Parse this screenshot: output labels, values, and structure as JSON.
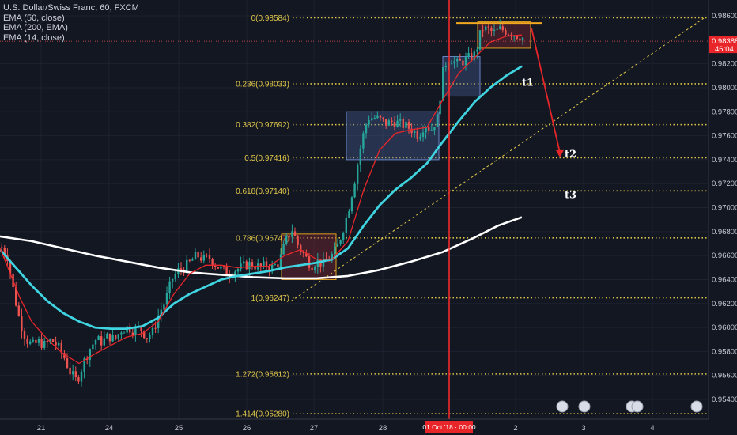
{
  "legend": {
    "symbol": "U.S. Dollar/Swiss Franc, 60, FXCM",
    "ema1": "EMA (50, close)",
    "ema2": "EMA (200, EMA)",
    "ema3": "EMA (14, close)"
  },
  "colors": {
    "background": "#131722",
    "fib": "#e0c74a",
    "ema50": "#3fd4e0",
    "ema200": "#ffffff",
    "ema14": "#e8262a",
    "bull": "#26a69a",
    "bear": "#ef5350",
    "vline": "#ff2a2a",
    "arrow": "#e8262a"
  },
  "price_tag": {
    "price": "0.98388",
    "countdown": "46:04"
  },
  "vline_label": "01 Oct '18 · 00:00",
  "targets": [
    "t1",
    "t2",
    "t3"
  ],
  "chart_data": {
    "type": "candlestick",
    "y_range": [
      0.9528,
      0.9866
    ],
    "y_ticks": [
      "0.98600",
      "0.98400",
      "0.98200",
      "0.98000",
      "0.97800",
      "0.97600",
      "0.97400",
      "0.97200",
      "0.97000",
      "0.96800",
      "0.96600",
      "0.96400",
      "0.96200",
      "0.96000",
      "0.95800",
      "0.95600",
      "0.95400"
    ],
    "x_ticks": [
      "21",
      "24",
      "25",
      "26",
      "27",
      "28",
      "2",
      "3",
      "4"
    ],
    "fib_levels": [
      {
        "label": "0(0.98584)",
        "value": 0.98584
      },
      {
        "label": "0.236(0.98033)",
        "value": 0.98033
      },
      {
        "label": "0.382(0.97692)",
        "value": 0.97692
      },
      {
        "label": "0.5(0.97416)",
        "value": 0.97416
      },
      {
        "label": "0.618(0.97140)",
        "value": 0.9714
      },
      {
        "label": "0.786(0.96747)",
        "value": 0.96747
      },
      {
        "label": "1(0.96247)",
        "value": 0.96247
      },
      {
        "label": "1.272(0.95612)",
        "value": 0.95612
      },
      {
        "label": "1.414(0.95280)",
        "value": 0.9528
      }
    ],
    "price_path": [
      [
        0,
        0.9667
      ],
      [
        8,
        0.966
      ],
      [
        16,
        0.963
      ],
      [
        24,
        0.9605
      ],
      [
        32,
        0.959
      ],
      [
        40,
        0.9585
      ],
      [
        48,
        0.9588
      ],
      [
        56,
        0.9585
      ],
      [
        64,
        0.959
      ],
      [
        72,
        0.9584
      ],
      [
        80,
        0.9575
      ],
      [
        88,
        0.9562
      ],
      [
        96,
        0.9555
      ],
      [
        104,
        0.957
      ],
      [
        112,
        0.9582
      ],
      [
        120,
        0.959
      ],
      [
        128,
        0.9588
      ],
      [
        136,
        0.9593
      ],
      [
        144,
        0.959
      ],
      [
        152,
        0.9598
      ],
      [
        160,
        0.96
      ],
      [
        168,
        0.9598
      ],
      [
        176,
        0.96
      ],
      [
        184,
        0.9592
      ],
      [
        192,
        0.9596
      ],
      [
        200,
        0.9612
      ],
      [
        208,
        0.9622
      ],
      [
        216,
        0.964
      ],
      [
        224,
        0.9647
      ],
      [
        232,
        0.965
      ],
      [
        240,
        0.9655
      ],
      [
        248,
        0.966
      ],
      [
        256,
        0.9657
      ],
      [
        264,
        0.9658
      ],
      [
        272,
        0.9652
      ],
      [
        280,
        0.9648
      ],
      [
        288,
        0.9645
      ],
      [
        296,
        0.9648
      ],
      [
        304,
        0.965
      ],
      [
        312,
        0.9653
      ],
      [
        320,
        0.9652
      ],
      [
        328,
        0.965
      ],
      [
        336,
        0.9652
      ],
      [
        344,
        0.965
      ],
      [
        352,
        0.9655
      ],
      [
        360,
        0.9672
      ],
      [
        368,
        0.9682
      ],
      [
        376,
        0.9668
      ],
      [
        384,
        0.966
      ],
      [
        392,
        0.9652
      ],
      [
        400,
        0.9655
      ],
      [
        408,
        0.9653
      ],
      [
        416,
        0.9658
      ],
      [
        424,
        0.9665
      ],
      [
        432,
        0.968
      ],
      [
        440,
        0.97
      ],
      [
        448,
        0.9725
      ],
      [
        456,
        0.9755
      ],
      [
        464,
        0.9775
      ],
      [
        472,
        0.9775
      ],
      [
        480,
        0.9773
      ],
      [
        488,
        0.977
      ],
      [
        496,
        0.9772
      ],
      [
        504,
        0.977
      ],
      [
        512,
        0.9768
      ],
      [
        520,
        0.9765
      ],
      [
        528,
        0.976
      ],
      [
        536,
        0.977
      ],
      [
        544,
        0.9765
      ],
      [
        552,
        0.9775
      ],
      [
        560,
        0.9818
      ],
      [
        568,
        0.9825
      ],
      [
        576,
        0.982
      ],
      [
        584,
        0.9822
      ],
      [
        592,
        0.9825
      ],
      [
        600,
        0.9828
      ],
      [
        608,
        0.985
      ],
      [
        616,
        0.9848
      ],
      [
        624,
        0.9846
      ],
      [
        632,
        0.9849
      ],
      [
        640,
        0.9847
      ],
      [
        648,
        0.9845
      ],
      [
        656,
        0.9843
      ],
      [
        662,
        0.9841
      ]
    ],
    "ema50": [
      [
        0,
        0.9665
      ],
      [
        20,
        0.965
      ],
      [
        40,
        0.9635
      ],
      [
        60,
        0.9622
      ],
      [
        80,
        0.9612
      ],
      [
        100,
        0.9605
      ],
      [
        120,
        0.96
      ],
      [
        140,
        0.9599
      ],
      [
        160,
        0.9599
      ],
      [
        180,
        0.9601
      ],
      [
        200,
        0.9608
      ],
      [
        220,
        0.962
      ],
      [
        240,
        0.9628
      ],
      [
        260,
        0.9634
      ],
      [
        280,
        0.964
      ],
      [
        300,
        0.9643
      ],
      [
        320,
        0.9645
      ],
      [
        340,
        0.9647
      ],
      [
        360,
        0.965
      ],
      [
        380,
        0.9652
      ],
      [
        400,
        0.9654
      ],
      [
        420,
        0.9657
      ],
      [
        440,
        0.9666
      ],
      [
        460,
        0.9685
      ],
      [
        480,
        0.9702
      ],
      [
        500,
        0.9715
      ],
      [
        520,
        0.9725
      ],
      [
        540,
        0.9737
      ],
      [
        560,
        0.9755
      ],
      [
        580,
        0.9772
      ],
      [
        600,
        0.9788
      ],
      [
        620,
        0.98
      ],
      [
        640,
        0.981
      ],
      [
        660,
        0.9818
      ]
    ],
    "ema200": [
      [
        0,
        0.9676
      ],
      [
        40,
        0.9672
      ],
      [
        80,
        0.9666
      ],
      [
        120,
        0.966
      ],
      [
        160,
        0.9655
      ],
      [
        200,
        0.965
      ],
      [
        240,
        0.9646
      ],
      [
        280,
        0.9644
      ],
      [
        320,
        0.9642
      ],
      [
        360,
        0.9641
      ],
      [
        400,
        0.9641
      ],
      [
        440,
        0.9643
      ],
      [
        480,
        0.9648
      ],
      [
        520,
        0.9655
      ],
      [
        560,
        0.9663
      ],
      [
        600,
        0.9675
      ],
      [
        630,
        0.9685
      ],
      [
        660,
        0.9692
      ]
    ],
    "ema14": [
      [
        0,
        0.9666
      ],
      [
        10,
        0.965
      ],
      [
        25,
        0.9625
      ],
      [
        40,
        0.9605
      ],
      [
        60,
        0.959
      ],
      [
        80,
        0.9578
      ],
      [
        100,
        0.957
      ],
      [
        120,
        0.9578
      ],
      [
        140,
        0.9585
      ],
      [
        160,
        0.9592
      ],
      [
        180,
        0.9595
      ],
      [
        200,
        0.9605
      ],
      [
        220,
        0.9628
      ],
      [
        240,
        0.9645
      ],
      [
        260,
        0.9652
      ],
      [
        280,
        0.9652
      ],
      [
        300,
        0.965
      ],
      [
        320,
        0.9651
      ],
      [
        340,
        0.9651
      ],
      [
        360,
        0.966
      ],
      [
        380,
        0.9665
      ],
      [
        400,
        0.9657
      ],
      [
        420,
        0.9657
      ],
      [
        440,
        0.9672
      ],
      [
        460,
        0.9715
      ],
      [
        480,
        0.9748
      ],
      [
        500,
        0.9762
      ],
      [
        520,
        0.9765
      ],
      [
        540,
        0.9767
      ],
      [
        560,
        0.979
      ],
      [
        580,
        0.9812
      ],
      [
        600,
        0.9825
      ],
      [
        620,
        0.9838
      ],
      [
        640,
        0.9843
      ],
      [
        660,
        0.9844
      ]
    ],
    "boxes": [
      {
        "kind": "orange",
        "x0": 356,
        "x1": 425,
        "y0": 0.9678,
        "y1": 0.964
      },
      {
        "kind": "blue",
        "x0": 438,
        "x1": 555,
        "y0": 0.978,
        "y1": 0.974
      },
      {
        "kind": "blue",
        "x0": 560,
        "x1": 607,
        "y0": 0.9826,
        "y1": 0.9793
      },
      {
        "kind": "orange",
        "x0": 604,
        "x1": 671,
        "y0": 0.9855,
        "y1": 0.9833
      }
    ],
    "trendline": {
      "x0": 368,
      "y0": 0.9622,
      "x1": 890,
      "y1": 0.9858
    },
    "top_line": {
      "x0": 577,
      "x1": 686,
      "y": 0.9854
    },
    "forecast": {
      "start": [
        672,
        0.985
      ],
      "end": [
        708,
        0.9742
      ]
    },
    "t_positions": [
      {
        "x": 660,
        "y": 0.98035
      },
      {
        "x": 714,
        "y": 0.9744
      },
      {
        "x": 714,
        "y": 0.971
      }
    ],
    "vline_x": 568
  }
}
